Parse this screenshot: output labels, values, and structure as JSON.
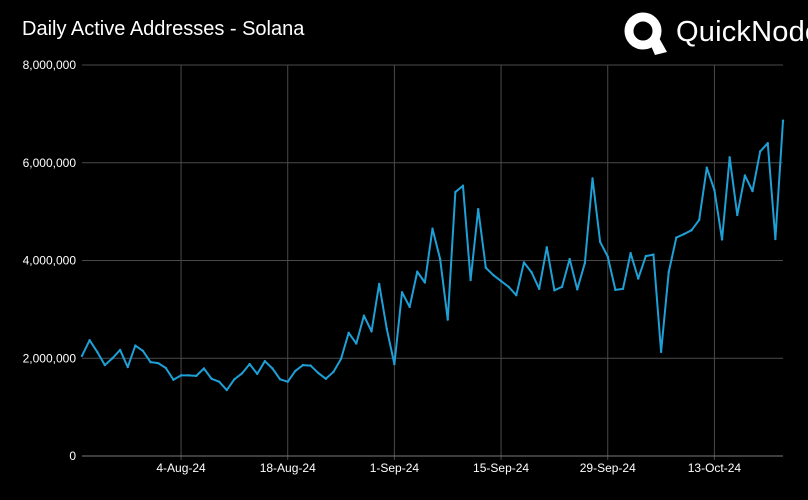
{
  "header": {
    "title": "Daily Active Addresses - Solana"
  },
  "brand": {
    "name": "QuickNode",
    "icon": "quicknode-q-logo-icon"
  },
  "colors": {
    "background": "#000000",
    "line": "#1e9fd6",
    "grid": "#4a4a4a",
    "text": "#ffffff"
  },
  "chart_data": {
    "type": "line",
    "title": "Daily Active Addresses - Solana",
    "xlabel": "",
    "ylabel": "",
    "ylim": [
      0,
      8000000
    ],
    "grid": true,
    "yticks": [
      {
        "value": 0,
        "label": "0"
      },
      {
        "value": 2000000,
        "label": "2,000,000"
      },
      {
        "value": 4000000,
        "label": "4,000,000"
      },
      {
        "value": 6000000,
        "label": "6,000,000"
      },
      {
        "value": 8000000,
        "label": "8,000,000"
      }
    ],
    "xrange": [
      "2024-07-22",
      "2024-10-22"
    ],
    "xticks": [
      {
        "date": "2024-08-04",
        "label": "4-Aug-24"
      },
      {
        "date": "2024-08-18",
        "label": "18-Aug-24"
      },
      {
        "date": "2024-09-01",
        "label": "1-Sep-24"
      },
      {
        "date": "2024-09-15",
        "label": "15-Sep-24"
      },
      {
        "date": "2024-09-29",
        "label": "29-Sep-24"
      },
      {
        "date": "2024-10-13",
        "label": "13-Oct-24"
      }
    ],
    "series": [
      {
        "start_date": "2024-07-22",
        "values": [
          2050000,
          2370000,
          2130000,
          1860000,
          2000000,
          2170000,
          1820000,
          2260000,
          2150000,
          1920000,
          1900000,
          1800000,
          1560000,
          1650000,
          1650000,
          1640000,
          1790000,
          1580000,
          1520000,
          1350000,
          1570000,
          1690000,
          1880000,
          1680000,
          1940000,
          1790000,
          1570000,
          1520000,
          1740000,
          1860000,
          1850000,
          1700000,
          1580000,
          1720000,
          1990000,
          2520000,
          2300000,
          2870000,
          2550000,
          3520000,
          2600000,
          1880000,
          3350000,
          3050000,
          3770000,
          3550000,
          4650000,
          4030000,
          2790000,
          5400000,
          5530000,
          3600000,
          5050000,
          3850000,
          3700000,
          3580000,
          3460000,
          3290000,
          3960000,
          3760000,
          3420000,
          4270000,
          3390000,
          3460000,
          4030000,
          3410000,
          3950000,
          5680000,
          4380000,
          4080000,
          3400000,
          3420000,
          4150000,
          3630000,
          4090000,
          4120000,
          2130000,
          3760000,
          4470000,
          4540000,
          4620000,
          4830000,
          5900000,
          5440000,
          4430000,
          6110000,
          4930000,
          5740000,
          5420000,
          6230000,
          6400000,
          4440000,
          6860000
        ]
      }
    ]
  }
}
